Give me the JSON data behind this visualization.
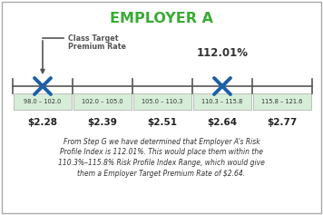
{
  "title": "EMPLOYER A",
  "title_color": "#3aaa35",
  "title_fontsize": 11.5,
  "ranges": [
    "98.0 – 102.0",
    "102.0 – 105.0",
    "105.0 – 110.3",
    "110.3 – 115.8",
    "115.8 – 121.6"
  ],
  "rates": [
    "$2.28",
    "$2.39",
    "$2.51",
    "$2.64",
    "$2.77"
  ],
  "class_target_label_line1": "Class Target",
  "class_target_label_line2": "Premium Rate",
  "class_target_col": 0,
  "employer_actual_col": 3,
  "employer_actual_pct": "112.01%",
  "x_marker_color": "#1a5fa8",
  "range_bg_color": "#d6edd8",
  "range_border_color": "#aaaaaa",
  "line_color": "#555555",
  "body_text_lines": [
    "From Step G we have determined that Employer A’s Risk",
    "Profile Index is 112.01%. This would place them within the",
    "110.3%–115.8% Risk Profile Index Range, which would give",
    "them a Employer Target Premium Rate of $2.64."
  ],
  "n_cols": 5,
  "fig_border_color": "#aaaaaa"
}
